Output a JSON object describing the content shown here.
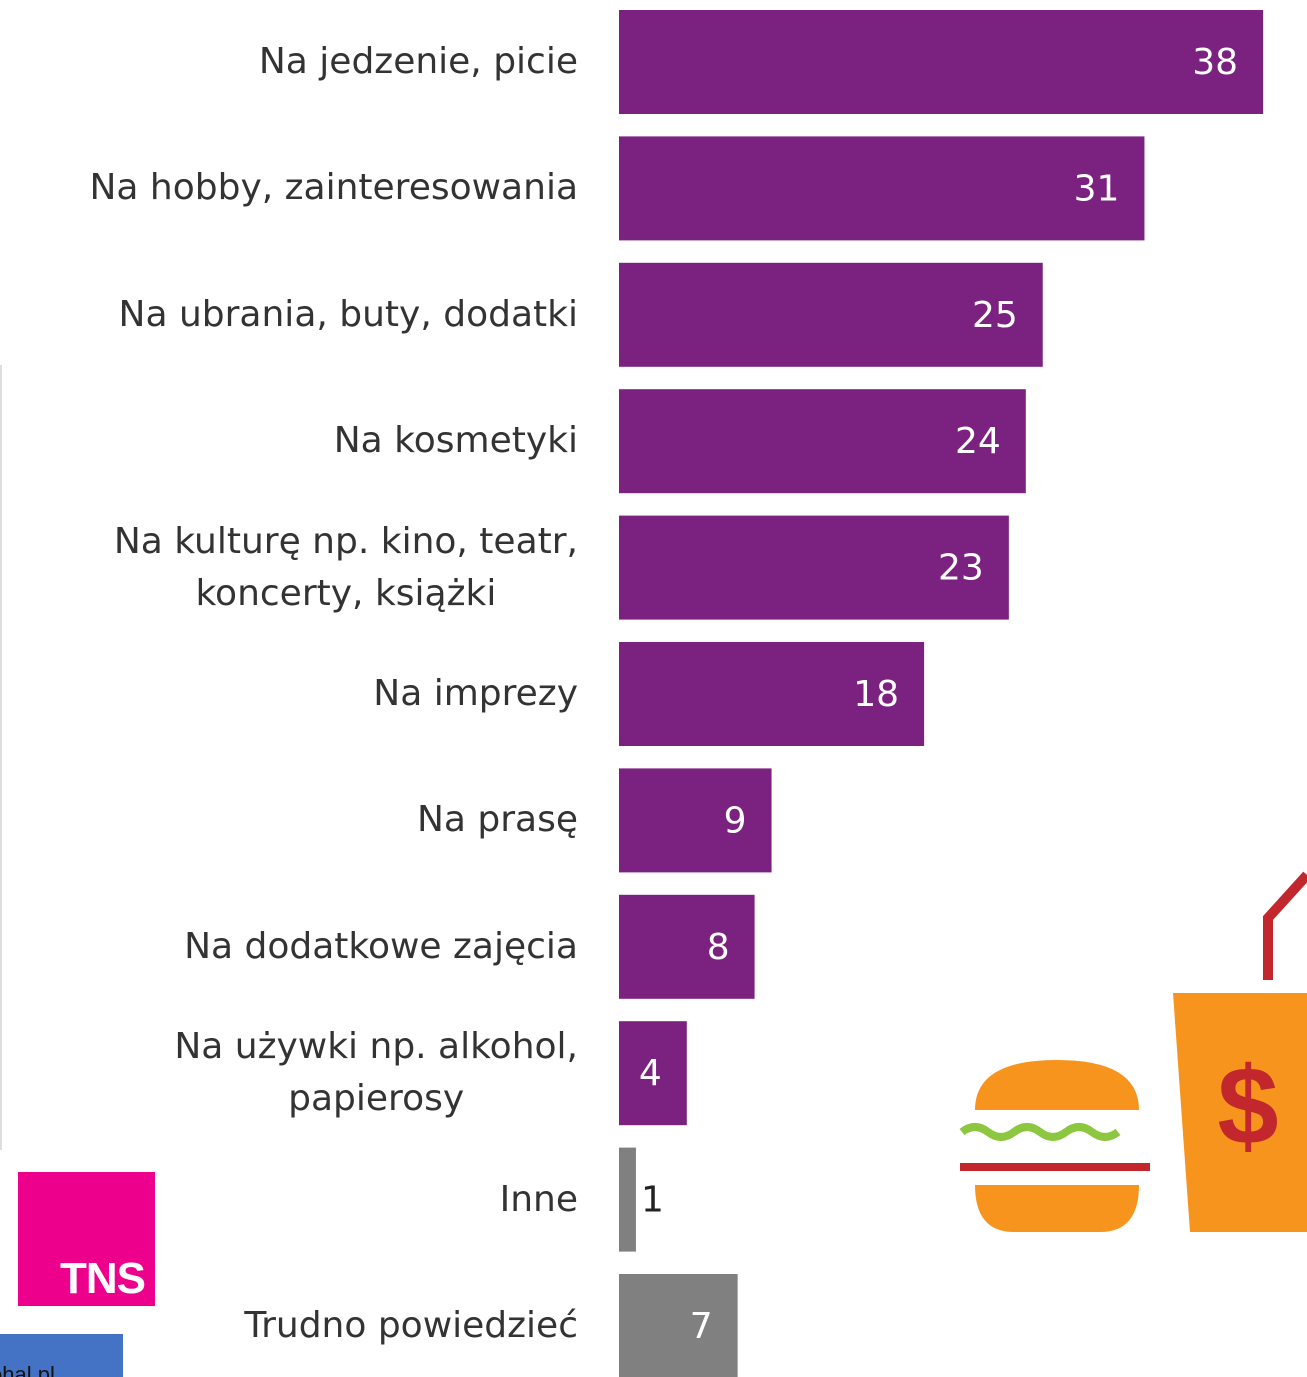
{
  "chart_data": {
    "type": "bar",
    "categories": [
      "Na jedzenie, picie",
      "Na hobby, zainteresowania",
      "Na ubrania, buty, dodatki",
      "Na kosmetyki",
      "Na kulturę np. kino, teatr,\nkoncerty, książki",
      "Na imprezy",
      "Na prasę",
      "Na dodatkowe zajęcia",
      "Na używki np. alkohol,\npapierosy",
      "Inne",
      "Trudno powiedzieć"
    ],
    "values": [
      38,
      31,
      25,
      24,
      23,
      18,
      9,
      8,
      4,
      1,
      7
    ],
    "colors": [
      "#7b2180",
      "#7b2180",
      "#7b2180",
      "#7b2180",
      "#7b2180",
      "#7b2180",
      "#7b2180",
      "#7b2180",
      "#7b2180",
      "#808080",
      "#808080"
    ]
  },
  "logo": "TNS",
  "source": "ohal.pl"
}
